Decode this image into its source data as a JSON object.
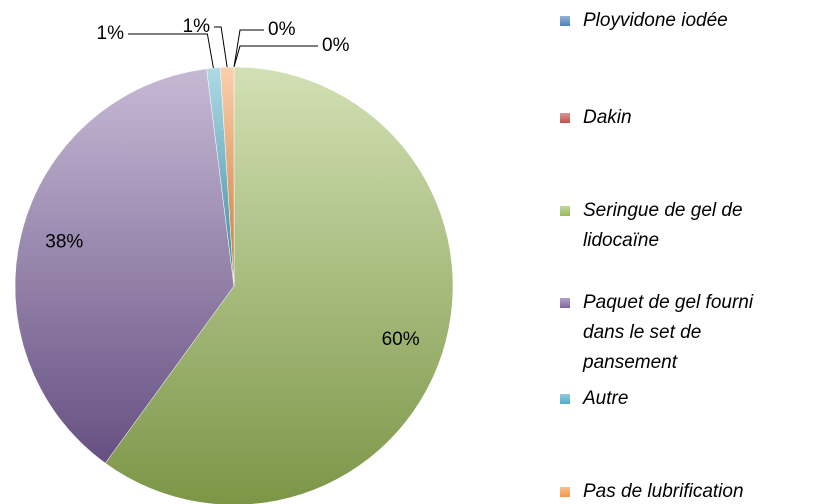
{
  "chart_data": {
    "type": "pie",
    "categories": [
      "Ployvidone iodée",
      "Dakin",
      "Seringue de gel de lidocaïne",
      "Paquet de gel fourni dans le set de pansement",
      "Autre",
      "Pas de lubrification"
    ],
    "values": [
      0,
      0,
      60,
      38,
      1,
      1
    ],
    "value_labels": [
      "0%",
      "0%",
      "60%",
      "38%",
      "1%",
      "1%"
    ],
    "colors": [
      "#4f81bd",
      "#c0504d",
      "#9bbb59",
      "#8064a2",
      "#4bacc6",
      "#f79646"
    ],
    "legend": "right"
  }
}
